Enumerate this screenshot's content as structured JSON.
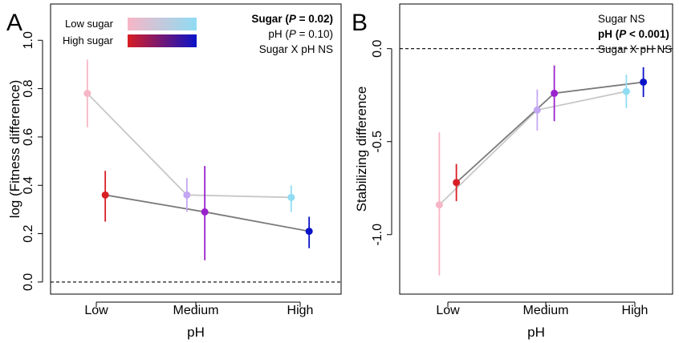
{
  "chart_data": [
    {
      "panel_label": "A",
      "type": "line",
      "xlabel": "pH",
      "ylabel": "log (Fitness difference)",
      "categories": [
        "Low",
        "Medium",
        "High"
      ],
      "ylim": [
        -0.05,
        1.15
      ],
      "yticks": [
        "0.0",
        "0.2",
        "0.4",
        "0.6",
        "0.8",
        "1.0"
      ],
      "reference_line": 0,
      "legend": {
        "position": "top-left",
        "entries": [
          {
            "label": "Low sugar",
            "gradient": [
              "#f7b6c6",
              "#8fdcf3"
            ]
          },
          {
            "label": "High sugar",
            "gradient": [
              "#d81e24",
              "#0a12c8"
            ]
          }
        ]
      },
      "stats": [
        {
          "parts": [
            {
              "text": "Sugar (",
              "style": "bold"
            },
            {
              "text": "P",
              "style": "bold-italic"
            },
            {
              "text": " = 0.02)",
              "style": "bold"
            }
          ]
        },
        {
          "parts": [
            {
              "text": "pH (",
              "style": "normal"
            },
            {
              "text": "P",
              "style": "italic"
            },
            {
              "text": " = 0.10)",
              "style": "normal"
            }
          ]
        },
        {
          "parts": [
            {
              "text": "Sugar X pH NS",
              "style": "normal"
            }
          ]
        }
      ],
      "series": [
        {
          "name": "Low sugar",
          "line_color": "#c8c8c8",
          "offset": -0.09,
          "values": [
            0.78,
            0.36,
            0.35
          ],
          "lower": [
            0.64,
            0.29,
            0.29
          ],
          "upper": [
            0.92,
            0.43,
            0.4
          ],
          "colors": [
            "#f7b6c6",
            "#c3a6f2",
            "#8fdcf3"
          ]
        },
        {
          "name": "High sugar",
          "line_color": "#7a7a7a",
          "offset": 0.09,
          "values": [
            0.36,
            0.29,
            0.21
          ],
          "lower": [
            0.25,
            0.09,
            0.14
          ],
          "upper": [
            0.46,
            0.48,
            0.27
          ],
          "colors": [
            "#d81e24",
            "#9a22cc",
            "#0a12c8"
          ]
        }
      ]
    },
    {
      "panel_label": "B",
      "type": "line",
      "xlabel": "pH",
      "ylabel": "Stabilizing difference",
      "categories": [
        "Low",
        "Medium",
        "High"
      ],
      "ylim": [
        -1.32,
        0.24
      ],
      "yticks": [
        "-1.0",
        "-0.5",
        "0.0"
      ],
      "reference_line": 0,
      "stats": [
        {
          "parts": [
            {
              "text": "Sugar NS",
              "style": "normal"
            }
          ]
        },
        {
          "parts": [
            {
              "text": "pH (",
              "style": "bold"
            },
            {
              "text": "P",
              "style": "bold-italic"
            },
            {
              "text": " < 0.001)",
              "style": "bold"
            }
          ]
        },
        {
          "parts": [
            {
              "text": "Sugar X pH NS",
              "style": "normal"
            }
          ]
        }
      ],
      "series": [
        {
          "name": "Low sugar",
          "line_color": "#c8c8c8",
          "offset": -0.09,
          "values": [
            -0.84,
            -0.33,
            -0.23
          ],
          "lower": [
            -1.22,
            -0.44,
            -0.32
          ],
          "upper": [
            -0.45,
            -0.22,
            -0.14
          ],
          "colors": [
            "#f7b6c6",
            "#c3a6f2",
            "#8fdcf3"
          ]
        },
        {
          "name": "High sugar",
          "line_color": "#7a7a7a",
          "offset": 0.09,
          "values": [
            -0.72,
            -0.24,
            -0.18
          ],
          "lower": [
            -0.82,
            -0.39,
            -0.26
          ],
          "upper": [
            -0.62,
            -0.09,
            -0.1
          ],
          "colors": [
            "#d81e24",
            "#9a22cc",
            "#0a12c8"
          ]
        }
      ]
    }
  ]
}
